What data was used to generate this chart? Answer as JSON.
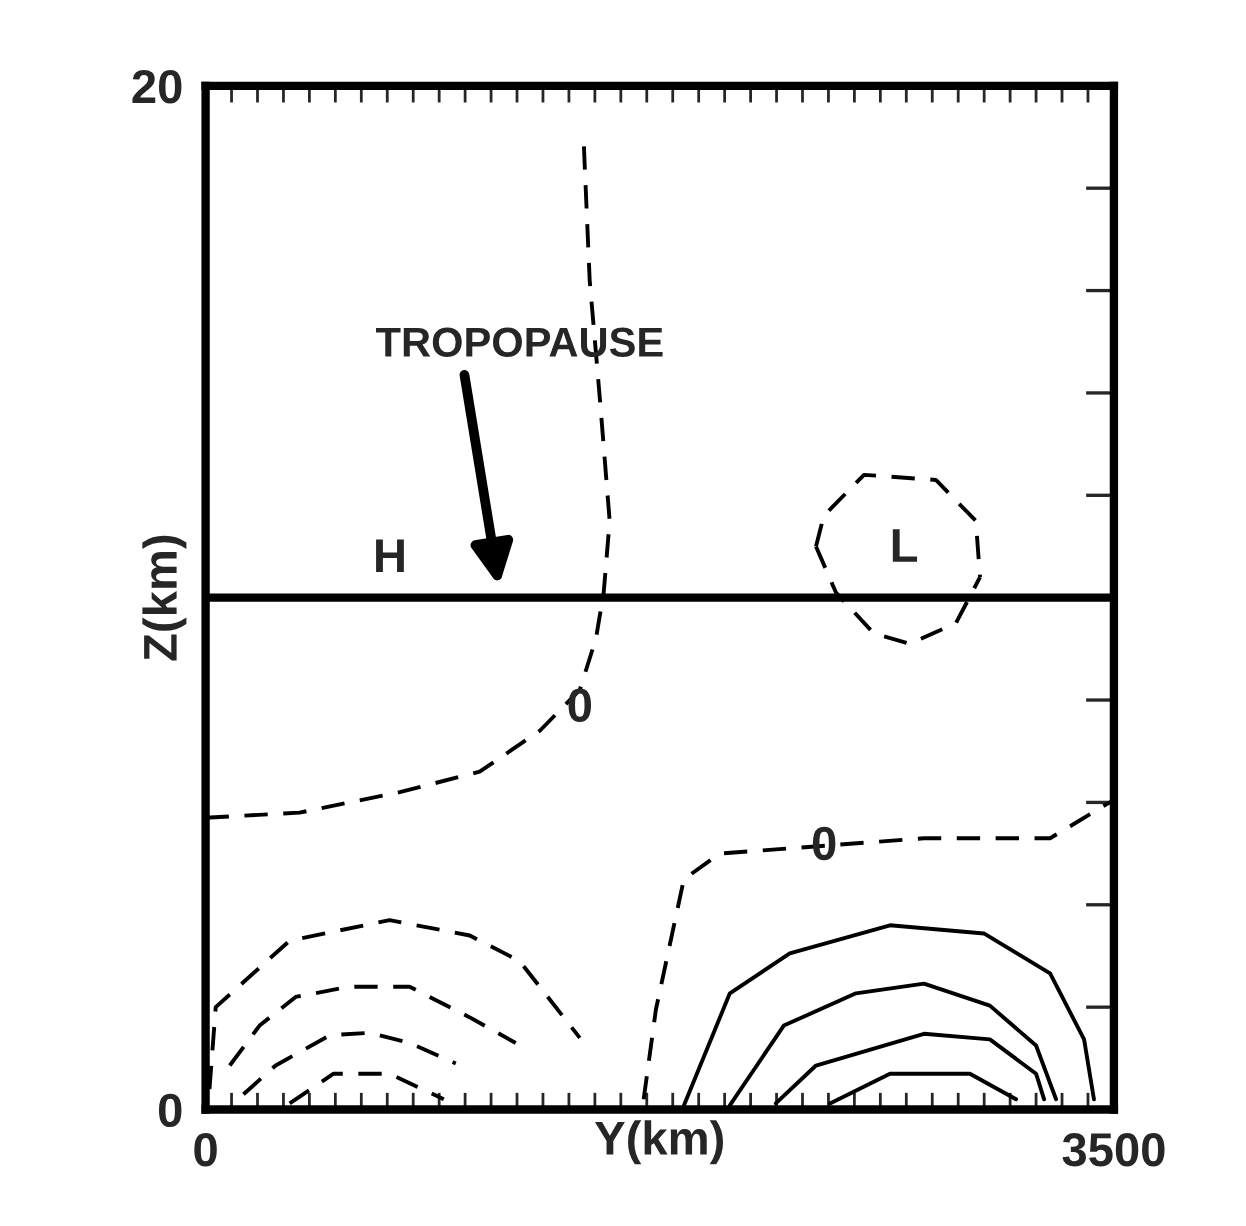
{
  "chart_data": {
    "type": "line",
    "xlabel": "Y(km)",
    "ylabel": "Z(km)",
    "xlim": [
      0,
      3500
    ],
    "ylim": [
      0,
      20
    ],
    "xticks": [
      0,
      {
        "value": 100,
        "label": null
      },
      {
        "value": 200,
        "label": null
      },
      {
        "value": 300,
        "label": null
      },
      {
        "value": 400,
        "label": null
      },
      {
        "value": 500,
        "label": null
      },
      {
        "value": 600,
        "label": null
      },
      {
        "value": 700,
        "label": null
      },
      {
        "value": 800,
        "label": null
      },
      {
        "value": 900,
        "label": null
      },
      {
        "value": 1000,
        "label": null
      },
      {
        "value": 1100,
        "label": null
      },
      {
        "value": 1200,
        "label": null
      },
      {
        "value": 1300,
        "label": null
      },
      {
        "value": 1400,
        "label": null
      },
      {
        "value": 1500,
        "label": null
      },
      {
        "value": 1600,
        "label": null
      },
      {
        "value": 1700,
        "label": null
      },
      {
        "value": 1800,
        "label": null
      },
      {
        "value": 1900,
        "label": null
      },
      {
        "value": 2000,
        "label": null
      },
      {
        "value": 2100,
        "label": null
      },
      {
        "value": 2200,
        "label": null
      },
      {
        "value": 2300,
        "label": null
      },
      {
        "value": 2400,
        "label": null
      },
      {
        "value": 2500,
        "label": null
      },
      {
        "value": 2600,
        "label": null
      },
      {
        "value": 2700,
        "label": null
      },
      {
        "value": 2800,
        "label": null
      },
      {
        "value": 2900,
        "label": null
      },
      {
        "value": 3000,
        "label": null
      },
      {
        "value": 3100,
        "label": null
      },
      {
        "value": 3200,
        "label": null
      },
      {
        "value": 3300,
        "label": null
      },
      {
        "value": 3400,
        "label": null
      },
      3500
    ],
    "yticks": [
      0,
      {
        "value": 2,
        "label": null
      },
      {
        "value": 4,
        "label": null
      },
      {
        "value": 6,
        "label": null
      },
      {
        "value": 8,
        "label": null
      },
      {
        "value": 10,
        "label": null
      },
      {
        "value": 12,
        "label": null
      },
      {
        "value": 14,
        "label": null
      },
      {
        "value": 16,
        "label": null
      },
      {
        "value": 18,
        "label": null
      },
      20
    ],
    "grid": false,
    "legend": false,
    "marker": "none",
    "ref_lines": [
      {
        "axis": "y",
        "value": 10,
        "color": "#000000",
        "line_style": "solid"
      }
    ],
    "annotations": [
      "TROPOPAUSE",
      "H",
      "L",
      "0",
      "0"
    ],
    "series": [
      {
        "color": "#000000",
        "line_style": "dashed",
        "x": [
          0,
          362,
          748,
          1056,
          1288,
          1442,
          1504,
          1534,
          1557,
          1519,
          1480,
          1457
        ],
        "values": [
          5.7,
          5.8,
          6.2,
          6.6,
          7.4,
          8.2,
          9.2,
          10.1,
          11.5,
          13.9,
          16.2,
          18.9
        ]
      },
      {
        "color": "#000000",
        "line_style": "dashed",
        "x": [
          1688,
          1735,
          1843,
          1981,
          2768,
          3254,
          3500
        ],
        "values": [
          0.2,
          1.95,
          4.5,
          5.0,
          5.3,
          5.3,
          6.05
        ]
      },
      {
        "color": "#000000",
        "line_style": "dashed",
        "x": [
          15,
          39,
          324,
          709,
          1018,
          1210,
          1442
        ],
        "values": [
          0.4,
          2.0,
          3.3,
          3.7,
          3.4,
          2.9,
          1.4
        ]
      },
      {
        "color": "#000000",
        "line_style": "dashed",
        "x": [
          93,
          208,
          347,
          555,
          786,
          1018,
          1195
        ],
        "values": [
          0.86,
          1.64,
          2.2,
          2.4,
          2.4,
          1.8,
          1.3
        ]
      },
      {
        "color": "#000000",
        "line_style": "dashed",
        "x": [
          146,
          270,
          478,
          632,
          786,
          964
        ],
        "values": [
          0.3,
          0.86,
          1.45,
          1.5,
          1.3,
          0.9
        ]
      },
      {
        "color": "#000000",
        "line_style": "dashed",
        "x": [
          324,
          493,
          709,
          918
        ],
        "values": [
          0.12,
          0.7,
          0.7,
          0.2
        ]
      },
      {
        "color": "#000000",
        "line_style": "solid",
        "x": [
          1843,
          2020,
          2251,
          2637,
          2999,
          3254,
          3385,
          3423
        ],
        "values": [
          0.08,
          2.27,
          3.05,
          3.6,
          3.44,
          2.66,
          1.37,
          0.2
        ]
      },
      {
        "color": "#000000",
        "line_style": "solid",
        "x": [
          2020,
          2228,
          2506,
          2768,
          3022,
          3200,
          3277
        ],
        "values": [
          0.08,
          1.64,
          2.27,
          2.46,
          2.03,
          1.25,
          0.2
        ]
      },
      {
        "color": "#000000",
        "line_style": "solid",
        "x": [
          2197,
          2352,
          2768,
          3022,
          3200,
          3231
        ],
        "values": [
          0.12,
          0.86,
          1.48,
          1.37,
          0.7,
          0.2
        ]
      },
      {
        "color": "#000000",
        "line_style": "solid",
        "x": [
          2406,
          2637,
          2945,
          3123
        ],
        "values": [
          0.12,
          0.7,
          0.7,
          0.2
        ]
      },
      {
        "color": "#000000",
        "line_style": "dashed",
        "x": [
          2352,
          2382,
          2537,
          2814,
          2968,
          2984
        ],
        "values": [
          11.0,
          11.6,
          12.4,
          12.3,
          11.5,
          10.4
        ]
      },
      {
        "color": "#000000",
        "line_style": "dashed",
        "x": [
          2352,
          2429,
          2575,
          2714,
          2891,
          2984
        ],
        "values": [
          11.0,
          10.1,
          9.3,
          9.1,
          9.5,
          10.4
        ]
      }
    ]
  }
}
